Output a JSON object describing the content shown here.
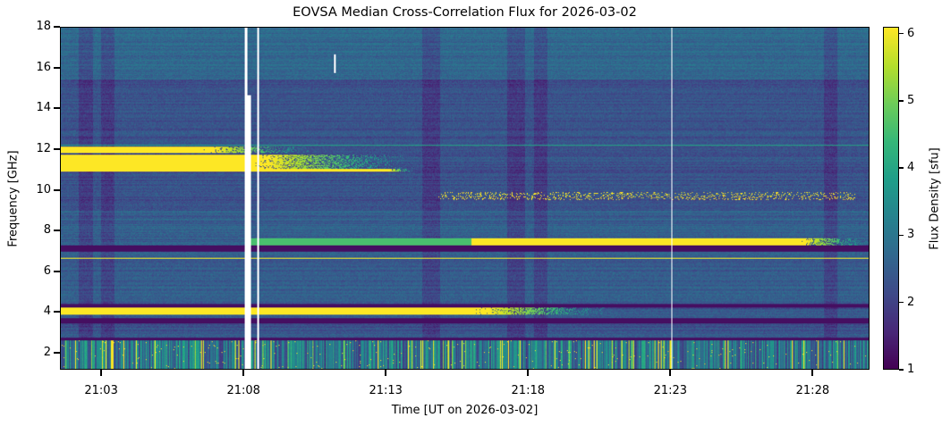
{
  "chart_data": {
    "type": "heatmap",
    "title": "EOVSA Median Cross-Correlation Flux for 2026-03-02",
    "xlabel": "Time [UT on 2026-03-02]",
    "ylabel": "Frequency [GHz]",
    "colorbar_label": "Flux Density [sfu]",
    "colormap": "viridis",
    "xlim": [
      "21:01:33",
      "21:30:00"
    ],
    "ylim": [
      1.17,
      18
    ],
    "clim": [
      1,
      6.1
    ],
    "x_ticks": [
      "21:03",
      "21:08",
      "21:13",
      "21:18",
      "21:23",
      "21:28"
    ],
    "y_ticks": [
      2,
      4,
      6,
      8,
      10,
      12,
      14,
      16,
      18
    ],
    "colorbar_ticks": [
      1,
      2,
      3,
      4,
      5,
      6
    ],
    "background_flux": 2.3,
    "bands": [
      {
        "freq": [
          11.85,
          12.15
        ],
        "time": [
          "21:01:33",
          "21:06:30"
        ],
        "fade_to": "21:10:30",
        "flux": 6.5
      },
      {
        "freq": [
          11.0,
          11.75
        ],
        "time": [
          "21:01:33",
          "21:08:10"
        ],
        "fade_to": "21:14:00",
        "flux": 6.5
      },
      {
        "freq": [
          10.9,
          11.05
        ],
        "time": [
          "21:01:33",
          "21:13:00"
        ],
        "fade_to": "21:14:00",
        "flux": 6.5
      },
      {
        "freq": [
          7.3,
          7.65
        ],
        "time": [
          "21:16:00",
          "21:27:30"
        ],
        "fade_to": "21:30:00",
        "flux": 6.5
      },
      {
        "freq": [
          7.3,
          7.65
        ],
        "time": [
          "21:08:00",
          "21:16:00"
        ],
        "fade_to": "21:16:00",
        "flux": 4.6
      },
      {
        "freq": [
          3.85,
          4.2
        ],
        "time": [
          "21:01:33",
          "21:16:00"
        ],
        "fade_to": "21:21:00",
        "flux": 6.5
      },
      {
        "freq": [
          6.62,
          6.68
        ],
        "time": [
          "21:01:33",
          "21:30:00"
        ],
        "fade_to": "21:30:00",
        "flux": 6.2
      },
      {
        "freq": [
          12.2,
          12.24
        ],
        "time": [
          "21:01:33",
          "21:30:00"
        ],
        "fade_to": "21:30:00",
        "flux": 4.0
      }
    ],
    "dark_lines_ghz": [
      3.5,
      3.62,
      7.05,
      7.2,
      2.65,
      4.3
    ],
    "speckle_band": {
      "freq": [
        9.5,
        9.9
      ],
      "time": [
        "21:14:50",
        "21:29:30"
      ],
      "flux": 6.3
    },
    "data_gaps": [
      {
        "time": [
          "21:08:00",
          "21:08:06"
        ],
        "freq": [
          1.17,
          18
        ]
      },
      {
        "time": [
          "21:08:06",
          "21:08:12"
        ],
        "freq": [
          1.17,
          14.7
        ]
      },
      {
        "time": [
          "21:08:27",
          "21:08:29"
        ],
        "freq": [
          1.17,
          18
        ]
      },
      {
        "time": [
          "21:23:02",
          "21:23:04"
        ],
        "freq": [
          1.17,
          18
        ]
      },
      {
        "time": [
          "21:11:10",
          "21:11:12"
        ],
        "freq": [
          15.8,
          16.7
        ]
      }
    ]
  }
}
